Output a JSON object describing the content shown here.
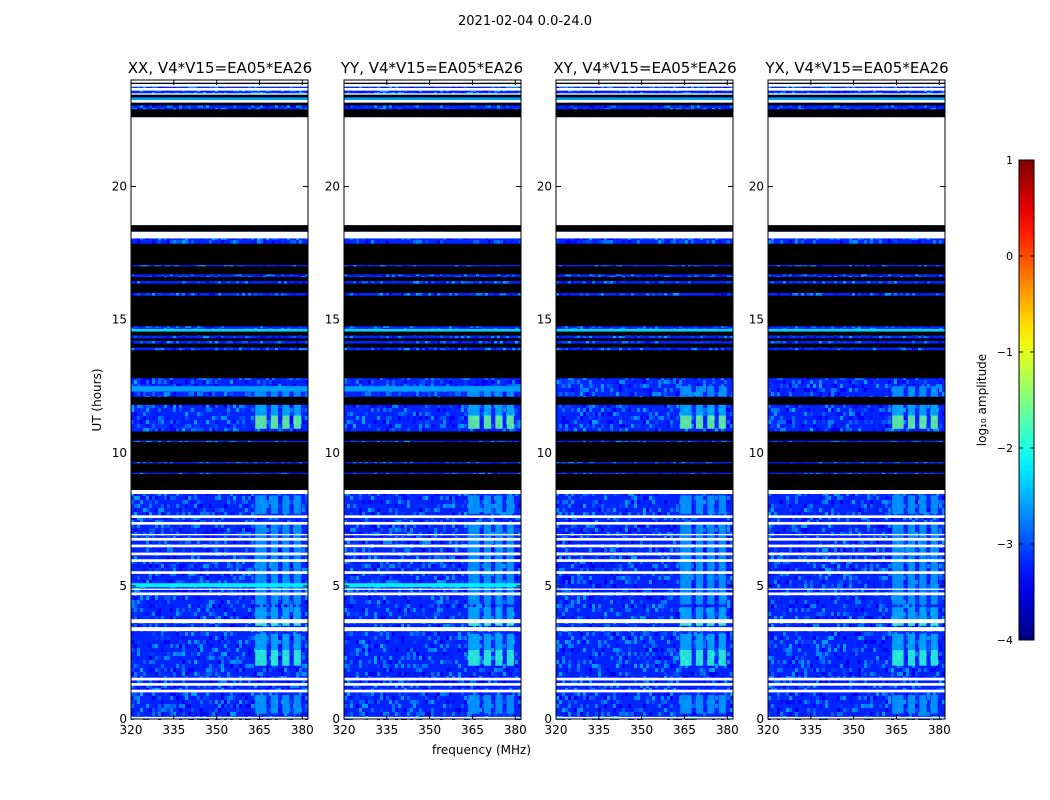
{
  "figure": {
    "suptitle": "2021-02-04 0.0-24.0",
    "xlabel": "frequency (MHz)",
    "ylabel": "UT (hours)",
    "colorbar_label": "log₁₀ amplitude"
  },
  "chart_data": {
    "type": "heatmap",
    "panels": [
      {
        "title": "XX, V4*V15=EA05*EA26"
      },
      {
        "title": "YY, V4*V15=EA05*EA26"
      },
      {
        "title": "XY, V4*V15=EA05*EA26"
      },
      {
        "title": "YX, V4*V15=EA05*EA26"
      }
    ],
    "xlim": [
      320,
      382
    ],
    "xticks": [
      320,
      335,
      350,
      365,
      380
    ],
    "ylim": [
      0,
      24
    ],
    "yticks": [
      0,
      5,
      10,
      15,
      20
    ],
    "colorbar": {
      "vmin": -4,
      "vmax": 1,
      "ticks": [
        -4,
        -3,
        -2,
        -1,
        0,
        1
      ],
      "colormap": "jet"
    },
    "background_log_amplitude": -3.2,
    "white_bands_ut": [
      [
        0.02,
        0.08
      ],
      [
        1.0,
        1.1
      ],
      [
        1.25,
        1.35
      ],
      [
        1.45,
        1.55
      ],
      [
        3.3,
        3.45
      ],
      [
        3.6,
        3.75
      ],
      [
        4.65,
        4.75
      ],
      [
        4.85,
        4.9
      ],
      [
        5.45,
        5.55
      ],
      [
        5.9,
        6.0
      ],
      [
        6.15,
        6.25
      ],
      [
        6.45,
        6.55
      ],
      [
        6.7,
        6.8
      ],
      [
        6.9,
        6.95
      ],
      [
        7.3,
        7.4
      ],
      [
        7.55,
        7.65
      ],
      [
        8.45,
        8.6
      ],
      [
        18.05,
        18.3
      ],
      [
        18.55,
        22.6
      ],
      [
        23.15,
        23.25
      ],
      [
        23.45,
        23.5
      ],
      [
        23.6,
        23.7
      ],
      [
        23.75,
        23.85
      ],
      [
        23.9,
        24.0
      ]
    ],
    "black_bands_ut": [
      [
        8.6,
        9.2
      ],
      [
        9.25,
        9.6
      ],
      [
        9.65,
        10.4
      ],
      [
        10.45,
        10.8
      ],
      [
        11.8,
        12.1
      ],
      [
        12.8,
        13.85
      ],
      [
        13.95,
        14.1
      ],
      [
        14.2,
        14.3
      ],
      [
        14.4,
        14.55
      ],
      [
        14.75,
        15.9
      ],
      [
        16.0,
        16.35
      ],
      [
        16.45,
        16.6
      ],
      [
        16.7,
        17.0
      ],
      [
        17.05,
        17.85
      ],
      [
        18.3,
        18.55
      ],
      [
        22.6,
        22.9
      ],
      [
        23.05,
        23.15
      ],
      [
        23.35,
        23.45
      ],
      [
        23.85,
        23.9
      ]
    ],
    "rfi_channels_mhz": [
      [
        363.5,
        367.5
      ],
      [
        369,
        371.5
      ],
      [
        373,
        375.5
      ],
      [
        377,
        379.5
      ]
    ],
    "rfi_events": [
      {
        "ut": [
          10.9,
          11.4
        ],
        "log_amplitude": -1.6,
        "panels": "all"
      },
      {
        "ut": [
          11.4,
          12.0
        ],
        "log_amplitude": -2.5,
        "panels": "all"
      },
      {
        "ut": [
          12.1,
          12.5
        ],
        "log_amplitude": -2.6,
        "panels": "all"
      },
      {
        "ut": [
          3.5,
          3.65
        ],
        "log_amplitude": -1.8,
        "panels": "all"
      },
      {
        "ut": [
          3.75,
          4.2
        ],
        "log_amplitude": -2.5,
        "panels": "all"
      },
      {
        "ut": [
          2.0,
          2.6
        ],
        "log_amplitude": -1.9,
        "panels": "all"
      },
      {
        "ut": [
          2.6,
          3.2
        ],
        "log_amplitude": -2.5,
        "panels": "all"
      },
      {
        "ut": [
          4.3,
          7.4
        ],
        "log_amplitude": -2.6,
        "panels": "all"
      },
      {
        "ut": [
          7.7,
          8.4
        ],
        "log_amplitude": -2.6,
        "panels": "all"
      },
      {
        "ut": [
          0.2,
          0.9
        ],
        "log_amplitude": -2.6,
        "panels": "all"
      }
    ],
    "broadband_events": [
      {
        "ut": [
          4.95,
          5.1
        ],
        "log_amplitude": -2.2,
        "panels": [
          "XX",
          "YY"
        ]
      },
      {
        "ut": [
          14.55,
          14.65
        ],
        "log_amplitude": -2.3,
        "panels": "all"
      },
      {
        "ut": [
          12.3,
          12.5
        ],
        "log_amplitude": -2.6,
        "panels": [
          "XX",
          "YY"
        ]
      },
      {
        "ut": [
          23.25,
          23.35
        ],
        "log_amplitude": -2.6,
        "panels": "all"
      }
    ]
  }
}
